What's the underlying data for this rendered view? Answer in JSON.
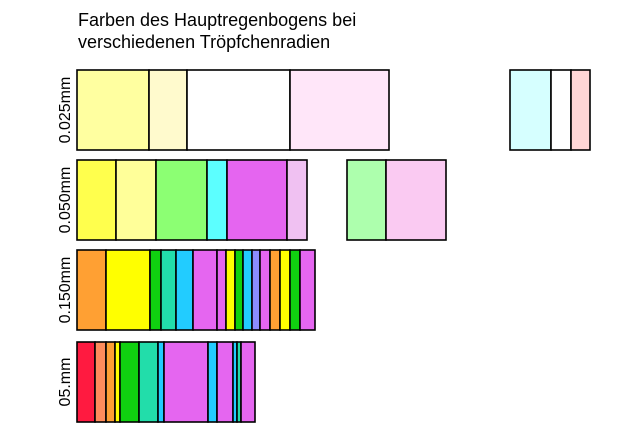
{
  "title": {
    "line1": "Farben des Hauptregenbogens bei",
    "line2": "verschiedenen Tröpfchenradien"
  },
  "rows": [
    {
      "label": "0.025mm",
      "groups": [
        {
          "segments": [
            {
              "color": "#ffffa0",
              "width": 72
            },
            {
              "color": "#fffacd",
              "width": 38
            },
            {
              "color": "#ffffff",
              "width": 103
            },
            {
              "color": "#ffe6f9",
              "width": 99
            }
          ]
        },
        {
          "segments": [
            {
              "color": "#d6ffff",
              "width": 41
            },
            {
              "color": "#ffffff",
              "width": 20
            },
            {
              "color": "#ffd6d6",
              "width": 19
            }
          ]
        }
      ]
    },
    {
      "label": "0.050mm",
      "groups": [
        {
          "segments": [
            {
              "color": "#ffff4d",
              "width": 39
            },
            {
              "color": "#ffff99",
              "width": 40
            },
            {
              "color": "#8cff73",
              "width": 51
            },
            {
              "color": "#5cffff",
              "width": 20
            },
            {
              "color": "#e565f0",
              "width": 60
            },
            {
              "color": "#f0c1f2",
              "width": 20
            }
          ]
        },
        {
          "segments": [
            {
              "color": "#adffad",
              "width": 39
            },
            {
              "color": "#facaf2",
              "width": 60
            }
          ]
        }
      ]
    },
    {
      "label": "0.150mm",
      "groups": [
        {
          "segments": [
            {
              "color": "#ffa033",
              "width": 29
            },
            {
              "color": "#ffff00",
              "width": 44
            },
            {
              "color": "#10d010",
              "width": 11
            },
            {
              "color": "#22ddaa",
              "width": 15
            },
            {
              "color": "#22ccff",
              "width": 17
            },
            {
              "color": "#e566f0",
              "width": 24
            },
            {
              "color": "#e566f0",
              "width": 9
            },
            {
              "color": "#ffff00",
              "width": 9
            },
            {
              "color": "#10d010",
              "width": 8
            },
            {
              "color": "#22ccff",
              "width": 9
            },
            {
              "color": "#8c8cff",
              "width": 8
            },
            {
              "color": "#e566f0",
              "width": 10
            },
            {
              "color": "#ffa033",
              "width": 10
            },
            {
              "color": "#ffff00",
              "width": 10
            },
            {
              "color": "#10d010",
              "width": 10
            },
            {
              "color": "#e566f0",
              "width": 15
            }
          ]
        }
      ]
    },
    {
      "label": "05.mm",
      "groups": [
        {
          "segments": [
            {
              "color": "#ff1a40",
              "width": 18
            },
            {
              "color": "#ff8c5c",
              "width": 11
            },
            {
              "color": "#ffa033",
              "width": 9
            },
            {
              "color": "#ffff00",
              "width": 5
            },
            {
              "color": "#10d010",
              "width": 19
            },
            {
              "color": "#22ddaa",
              "width": 19
            },
            {
              "color": "#22ccff",
              "width": 6
            },
            {
              "color": "#e566f0",
              "width": 44
            },
            {
              "color": "#22ccff",
              "width": 9
            },
            {
              "color": "#e566f0",
              "width": 16
            },
            {
              "color": "#22ccff",
              "width": 4
            },
            {
              "color": "#22ddaa",
              "width": 4
            },
            {
              "color": "#e566f0",
              "width": 14
            }
          ]
        }
      ]
    }
  ]
}
